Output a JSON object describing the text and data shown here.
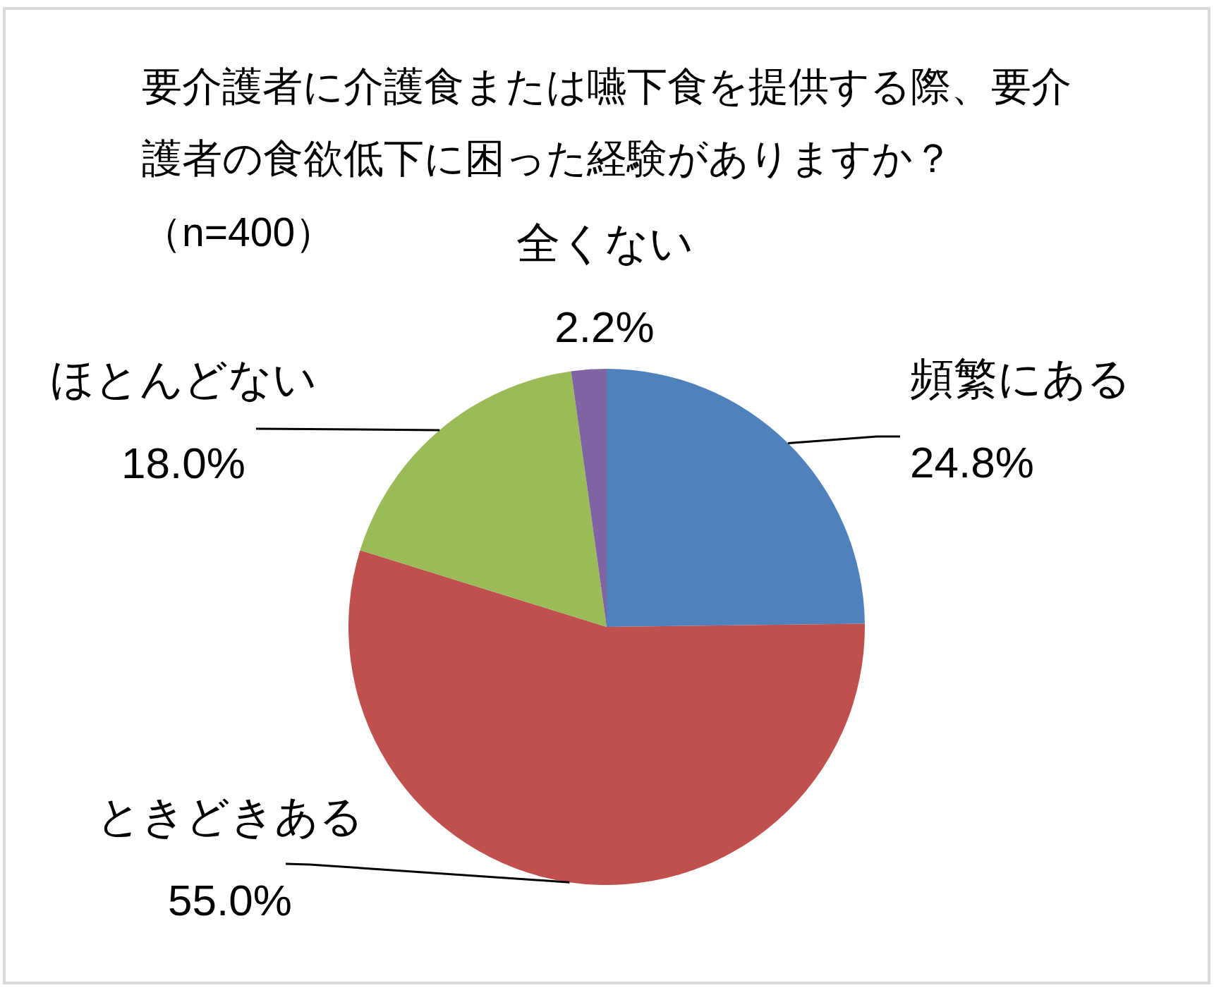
{
  "chart_data": {
    "type": "pie",
    "title": "要介護者に介護食または嚥下食を提供する際、要介護者の食欲低下に困った経験がありますか？",
    "subtitle": "（n=400）",
    "categories": [
      "頻繁にある",
      "ときどきある",
      "ほとんどない",
      "全くない"
    ],
    "values": [
      24.8,
      55.0,
      18.0,
      2.2
    ],
    "colors": [
      "#4f81bd",
      "#c0504d",
      "#9bbb59",
      "#8064a2"
    ],
    "value_labels": [
      "24.8%",
      "55.0%",
      "18.0%",
      "2.2%"
    ]
  }
}
